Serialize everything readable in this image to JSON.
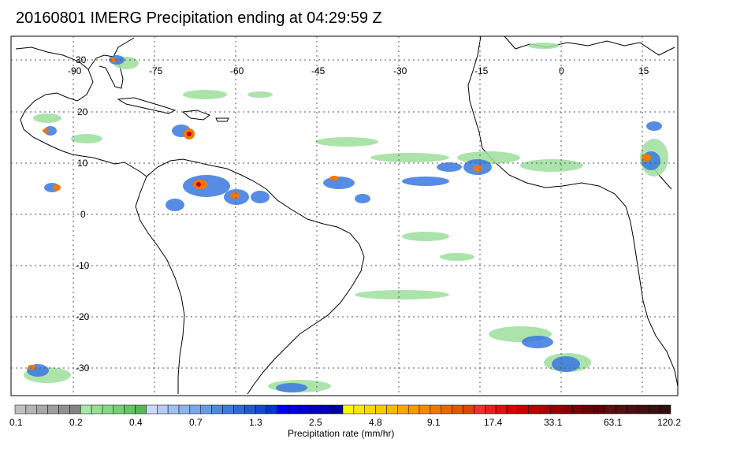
{
  "title": "20160801 IMERG Precipitation ending at 04:29:59 Z",
  "map": {
    "longitude_labels": [
      "-90",
      "-75",
      "-60",
      "-45",
      "-30",
      "-15",
      "0",
      "15"
    ],
    "latitude_labels": [
      "30",
      "20",
      "10",
      "0",
      "-10",
      "-20",
      "-30"
    ],
    "grid": "dotted",
    "precip_palette": [
      "#9ddf9d",
      "#7cc47c",
      "#bcd0f0",
      "#6fa8ee",
      "#3a78e0",
      "#1533c8",
      "#0000c8",
      "#fcf400",
      "#f8b800",
      "#f07800",
      "#e83000",
      "#c80000",
      "#7a0808"
    ]
  },
  "colorbar": {
    "labels": [
      "0.1",
      "0.2",
      "0.4",
      "0.7",
      "1.3",
      "2.5",
      "4.8",
      "9.1",
      "17.4",
      "33.1",
      "63.1",
      "120.2"
    ],
    "title": "Precipitation rate (mm/hr)",
    "colors": [
      "#c0c0c0",
      "#b4b4b4",
      "#a8a8a8",
      "#9c9c9c",
      "#909090",
      "#848484",
      "#a6e8a6",
      "#96e096",
      "#86d886",
      "#76cf76",
      "#66c466",
      "#58b858",
      "#c8d8f8",
      "#b4ccf4",
      "#a0c0f0",
      "#8cb4ec",
      "#78a8e8",
      "#649ce4",
      "#5088e0",
      "#4078dc",
      "#3068d8",
      "#2058d4",
      "#1048d0",
      "#0038cc",
      "#0000f0",
      "#0000e0",
      "#0000d0",
      "#0000c0",
      "#0000b0",
      "#0000a0",
      "#f8f800",
      "#f8e800",
      "#f8d800",
      "#f8c800",
      "#f8b800",
      "#f8a800",
      "#f89800",
      "#f88800",
      "#f07800",
      "#e86800",
      "#e05800",
      "#d84800",
      "#f03030",
      "#e82020",
      "#e01010",
      "#d80000",
      "#c80000",
      "#b80000",
      "#a80000",
      "#980000",
      "#880000",
      "#780000",
      "#6c0000",
      "#600000",
      "#5a1010",
      "#521010",
      "#4a1010",
      "#421010",
      "#3a1010",
      "#321010"
    ]
  }
}
